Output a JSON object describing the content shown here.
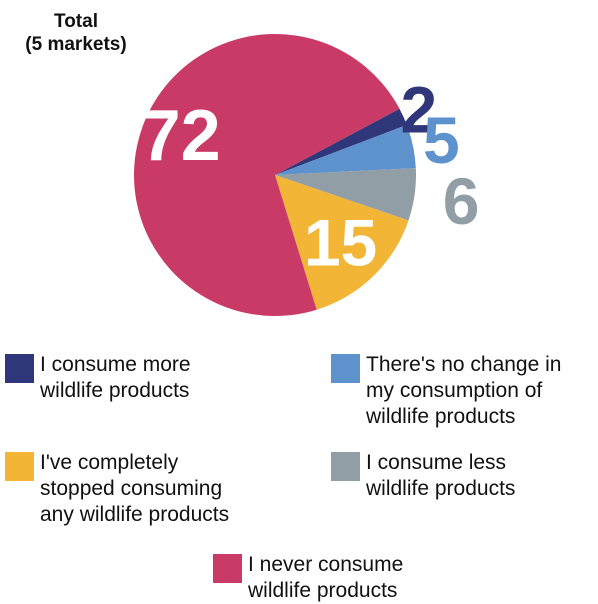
{
  "chart_data": {
    "type": "pie",
    "title": "Total",
    "subtitle": "(5 markets)",
    "slices": [
      {
        "label": "I consume more wildlife products",
        "value": 2,
        "color": "#2f3679"
      },
      {
        "label": "There's no change in my consumption of wildlife products",
        "value": 5,
        "color": "#5d92cc"
      },
      {
        "label": "I consume less wildlife products",
        "value": 6,
        "color": "#929ea6"
      },
      {
        "label": "I've completely stopped consuming any wildlife products",
        "value": 15,
        "color": "#f2b536"
      },
      {
        "label": "I never consume wildlife products",
        "value": 72,
        "color": "#c93a66"
      }
    ]
  },
  "data_labels": [
    "2",
    "5",
    "6",
    "15",
    "72"
  ],
  "legend": [
    {
      "lines": [
        "I consume more",
        "wildlife products"
      ],
      "color": "#2f3679"
    },
    {
      "lines": [
        "There's no change in",
        "my consumption of",
        "wildlife products"
      ],
      "color": "#5d92cc"
    },
    {
      "lines": [
        "I've completely",
        "stopped consuming",
        "any wildlife products"
      ],
      "color": "#f2b536"
    },
    {
      "lines": [
        "I consume less",
        "wildlife products"
      ],
      "color": "#929ea6"
    },
    {
      "lines": [
        "I never consume",
        "wildlife products"
      ],
      "color": "#c93a66"
    }
  ]
}
